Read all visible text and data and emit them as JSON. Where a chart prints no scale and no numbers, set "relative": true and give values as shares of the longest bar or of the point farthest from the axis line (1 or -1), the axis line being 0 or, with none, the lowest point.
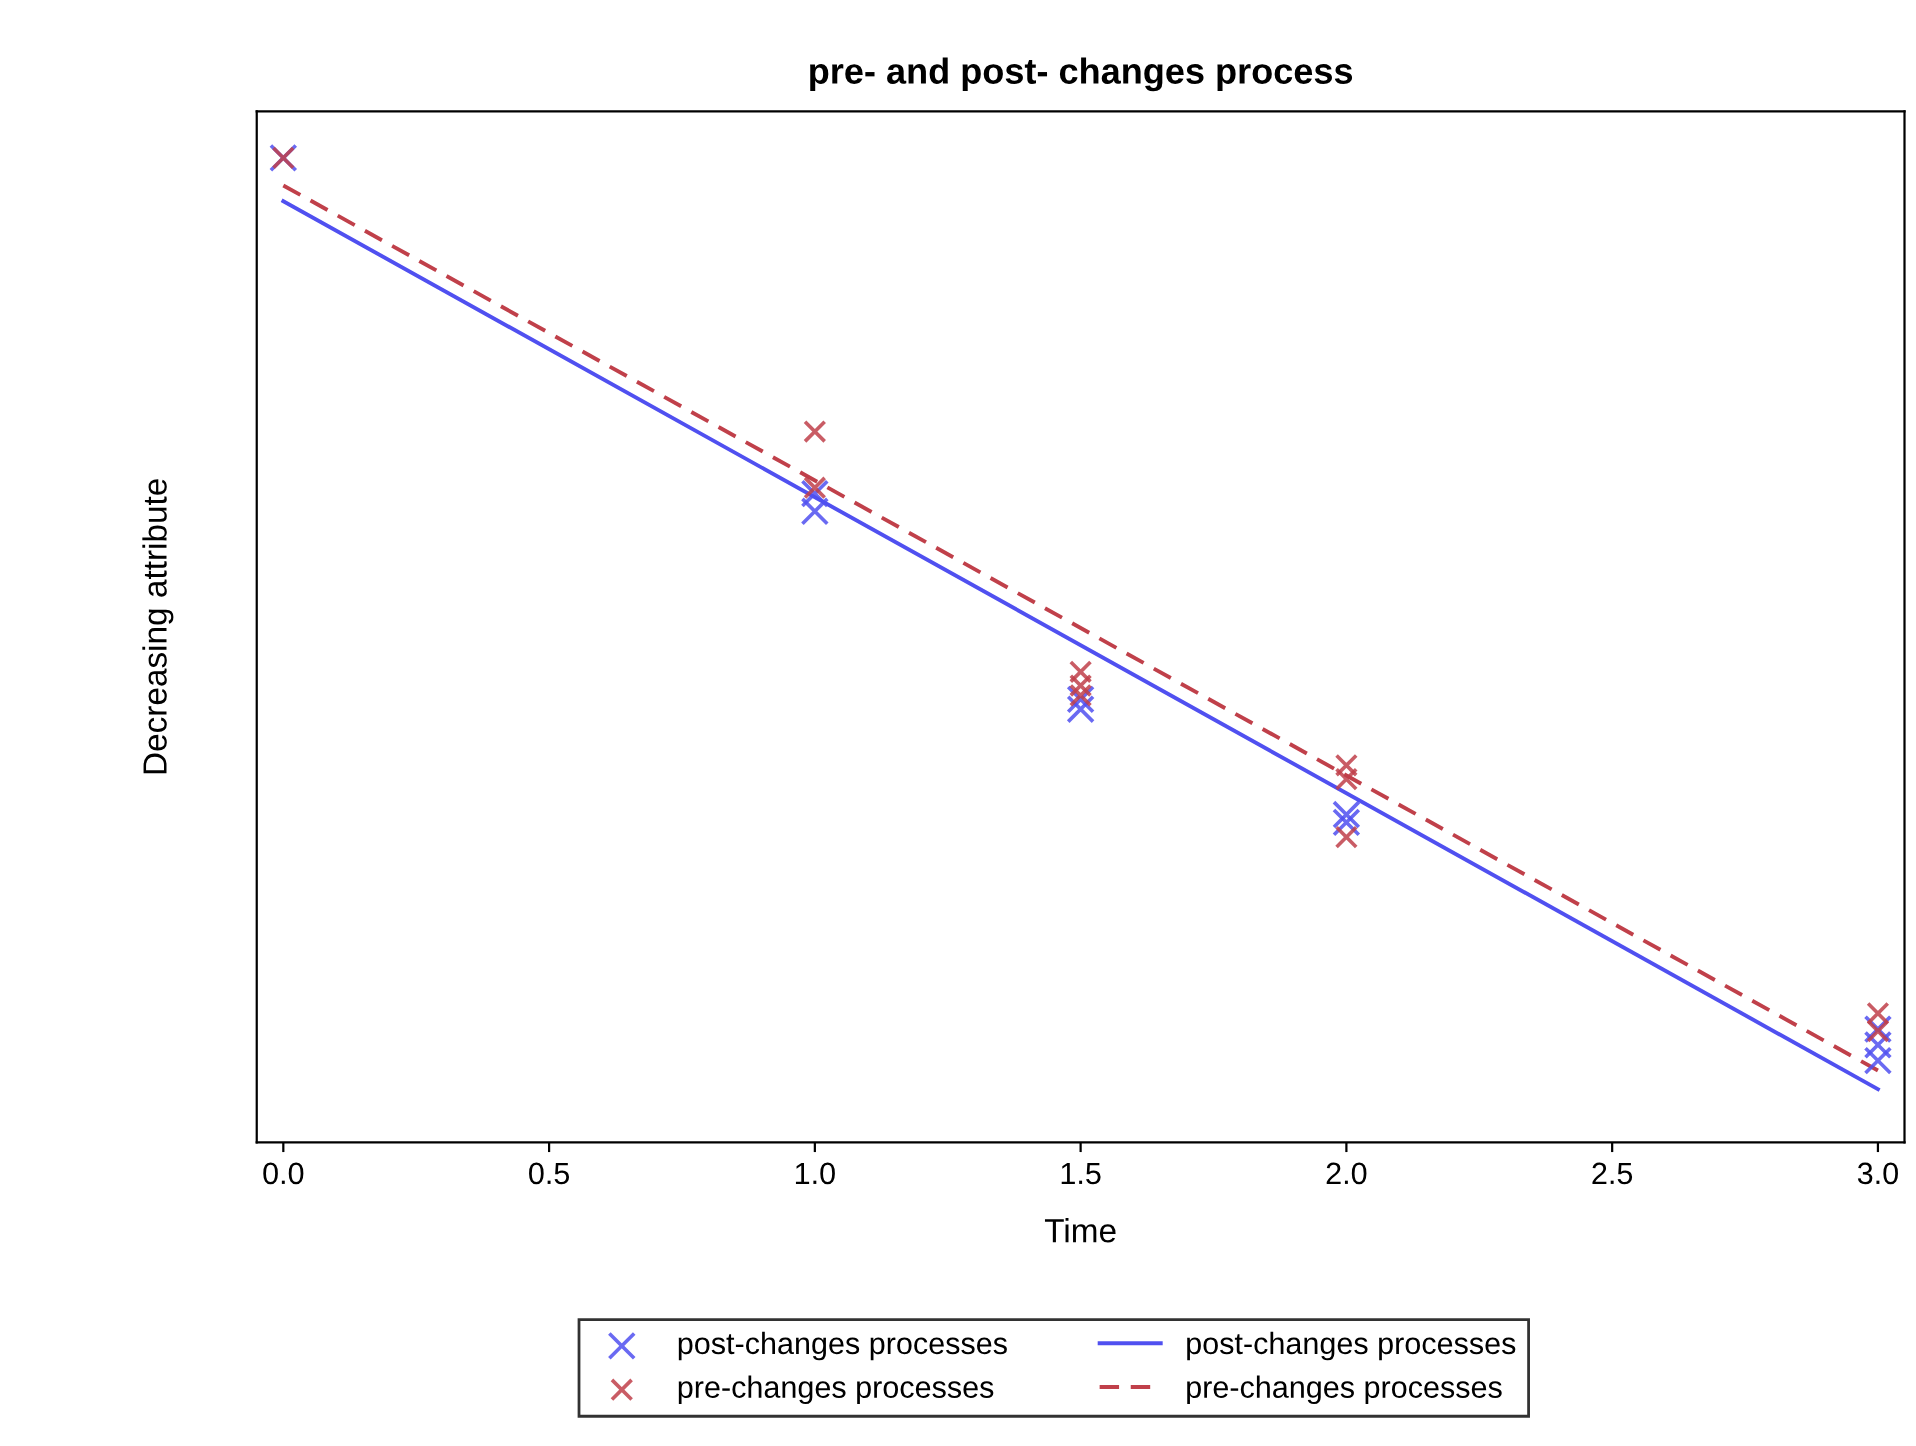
{
  "chart_data": {
    "type": "scatter",
    "title": "pre- and post- changes process",
    "xlabel": "Time",
    "ylabel": "Decreasing attribute",
    "relative": true,
    "xlim": [
      -0.05,
      3.05
    ],
    "xticks": [
      {
        "value": 0,
        "label": "0.0"
      },
      {
        "value": 0.5,
        "label": "0.5"
      },
      {
        "value": 1,
        "label": "1.0"
      },
      {
        "value": 1.5,
        "label": "1.5"
      },
      {
        "value": 2,
        "label": "2.0"
      },
      {
        "value": 2.5,
        "label": "2.5"
      },
      {
        "value": 3,
        "label": "3.0"
      }
    ],
    "legend": "bottom",
    "grid": false,
    "series": [
      {
        "name": "post-changes processes",
        "marker": "cross",
        "color": "#5050f0",
        "x": [
          0,
          1,
          1,
          1.5,
          1.5,
          2,
          2,
          3,
          3,
          3
        ],
        "values": [
          1.0,
          0.659,
          0.641,
          0.45,
          0.44,
          0.333,
          0.325,
          0.115,
          0.099,
          0.083
        ]
      },
      {
        "name": "pre-changes processes",
        "marker": "cross",
        "color": "#c0404a",
        "x": [
          0,
          1,
          1,
          1.5,
          1.5,
          1.5,
          2,
          2,
          2,
          3,
          3
        ],
        "values": [
          1.0,
          0.722,
          0.665,
          0.478,
          0.464,
          0.454,
          0.383,
          0.369,
          0.31,
          0.131,
          0.113
        ]
      },
      {
        "name": "post-changes processes",
        "type": "line",
        "color": "#5050f0",
        "line_style": "solid",
        "x": [
          0,
          3
        ],
        "values": [
          0.956,
          0.054
        ]
      },
      {
        "name": "pre-changes processes",
        "type": "line",
        "color": "#c0404a",
        "line_style": "dashed",
        "x": [
          0,
          3
        ],
        "values": [
          0.972,
          0.073
        ]
      }
    ]
  }
}
